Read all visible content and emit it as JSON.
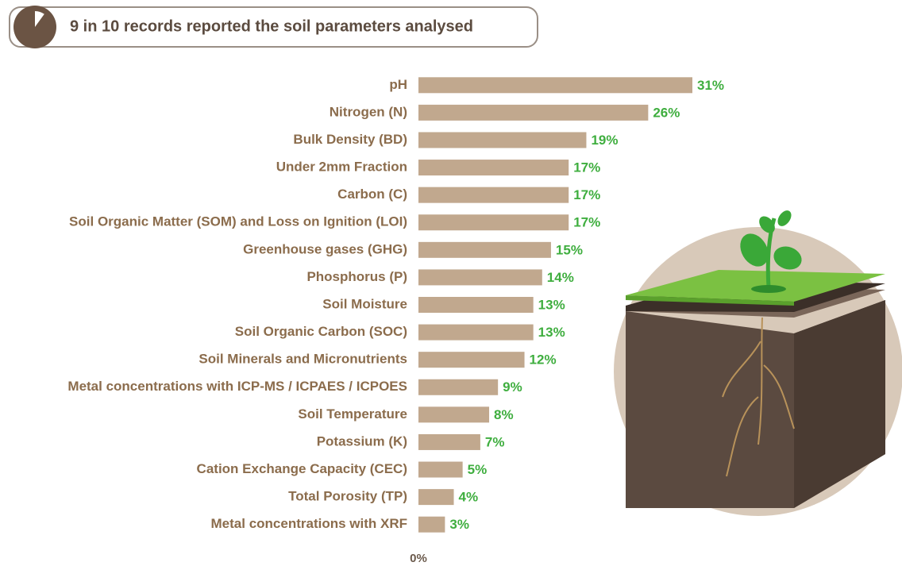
{
  "chart_data": {
    "type": "bar",
    "orientation": "horizontal",
    "title": "9 in 10 records reported the soil parameters analysed",
    "categories": [
      "pH",
      "Nitrogen (N)",
      "Bulk Density (BD)",
      "Under 2mm Fraction",
      "Carbon (C)",
      "Soil Organic Matter (SOM) and Loss on Ignition (LOI)",
      "Greenhouse gases (GHG)",
      "Phosphorus (P)",
      "Soil Moisture",
      "Soil Organic Carbon (SOC)",
      "Soil Minerals and Micronutrients",
      "Metal concentrations with ICP-MS / ICPAES / ICPOES",
      "Soil Temperature",
      "Potassium (K)",
      "Cation Exchange Capacity (CEC)",
      "Total Porosity (TP)",
      "Metal concentrations with XRF"
    ],
    "values": [
      31,
      26,
      19,
      17,
      17,
      17,
      15,
      14,
      13,
      13,
      12,
      9,
      8,
      7,
      5,
      4,
      3
    ],
    "value_labels": [
      "31%",
      "26%",
      "19%",
      "17%",
      "17%",
      "17%",
      "15%",
      "14%",
      "13%",
      "13%",
      "12%",
      "9%",
      "8%",
      "7%",
      "5%",
      "4%",
      "3%"
    ],
    "color": "#c1a88e",
    "label_color": "#8b6c4c",
    "value_label_color": "#3fae3f",
    "xlim": [
      0,
      31
    ],
    "xticks": [
      {
        "value": 0,
        "label": "0%"
      }
    ]
  }
}
